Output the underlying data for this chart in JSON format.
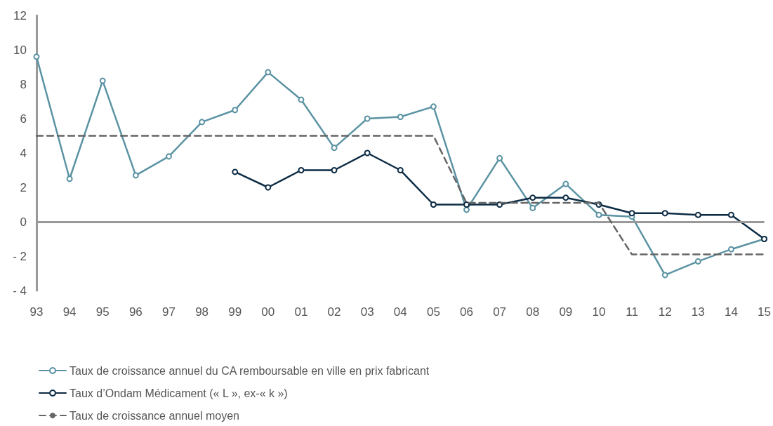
{
  "chart_data": {
    "type": "line",
    "categories": [
      "93",
      "94",
      "95",
      "96",
      "97",
      "98",
      "99",
      "00",
      "01",
      "02",
      "03",
      "04",
      "05",
      "06",
      "07",
      "08",
      "09",
      "10",
      "11",
      "12",
      "13",
      "14",
      "15"
    ],
    "series": [
      {
        "name": "Taux de croissance annuel du CA remboursable en ville en prix fabricant",
        "color": "#5b93a3",
        "marker": "circle",
        "line_style": "solid",
        "values": [
          9.6,
          2.5,
          8.2,
          2.7,
          3.8,
          5.8,
          6.5,
          8.7,
          7.1,
          4.3,
          6.0,
          6.1,
          6.7,
          0.7,
          3.7,
          0.8,
          2.2,
          0.4,
          0.3,
          -3.1,
          -2.3,
          -1.6,
          -1.0
        ]
      },
      {
        "name": "Taux d’Ondam Médicament (« L », ex-« k »)",
        "color": "#0d2c45",
        "marker": "circle",
        "line_style": "solid",
        "values": [
          null,
          null,
          null,
          null,
          null,
          null,
          2.9,
          2.0,
          3.0,
          3.0,
          4.0,
          3.0,
          1.0,
          1.0,
          1.0,
          1.4,
          1.4,
          1.0,
          0.5,
          0.5,
          0.4,
          0.4,
          -1.0
        ]
      },
      {
        "name": "Taux de croissance annuel moyen",
        "color": "#666666",
        "marker": "none",
        "line_style": "dashed",
        "values": [
          5,
          5,
          5,
          5,
          5,
          5,
          5,
          5,
          5,
          5,
          5,
          5,
          5,
          1.1,
          1.1,
          1.1,
          1.1,
          1.1,
          -1.9,
          -1.9,
          -1.9,
          -1.9,
          -1.9
        ]
      }
    ],
    "ylim": [
      -4,
      12
    ],
    "yticks": [
      {
        "value": -4,
        "label": "- 4"
      },
      {
        "value": -2,
        "label": "- 2"
      },
      0,
      2,
      4,
      6,
      8,
      10,
      12
    ],
    "ref_lines": [
      {
        "axis": "y",
        "value": 0,
        "color": "#999999"
      }
    ],
    "grid": false,
    "legend": "bottom"
  }
}
